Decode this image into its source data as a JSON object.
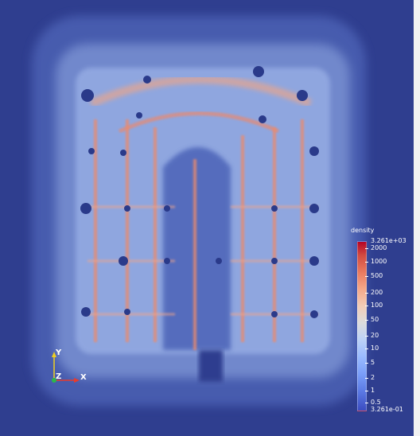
{
  "scalar_bar": {
    "title": "density",
    "max_label": "3.261e+03",
    "ticks": [
      "2000",
      "1000",
      "500",
      "200",
      "100",
      "50",
      "20",
      "10",
      "5",
      "2",
      "1",
      "0.5"
    ],
    "min_label": "3.261e-01"
  },
  "axes": {
    "x_label": "X",
    "y_label": "Y",
    "z_label": "Z",
    "x_color": "#e63b2e",
    "y_color": "#f0d020",
    "z_color": "#2db84a"
  },
  "colors": {
    "background": "#2f3e8f",
    "low": "#3b4cc0",
    "high": "#b40426"
  }
}
